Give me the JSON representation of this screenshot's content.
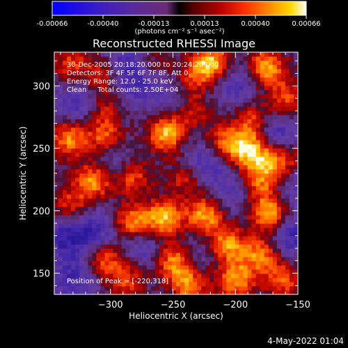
{
  "chart_data": {
    "type": "heatmap",
    "title": "Reconstructed RHESSI Image",
    "xlabel": "Heliocentric X (arcsec)",
    "ylabel": "Heliocentric Y (arcsec)",
    "xlim": [
      -345,
      -150
    ],
    "ylim": [
      133,
      327
    ],
    "x_ticks": [
      -300,
      -250,
      -200,
      -150
    ],
    "y_ticks": [
      150,
      200,
      250,
      300
    ],
    "colorbar": {
      "min": -0.00066,
      "max": 0.00066,
      "ticks": [
        "-0.00066",
        "-0.00040",
        "-0.00013",
        "0.00013",
        "0.00040",
        "0.00066"
      ],
      "unit_label": "(photons cm⁻² s⁻¹ asec⁻²)"
    },
    "annotations": [
      "30-Dec-2005 20:18:20.000 to 20:24:20.000",
      "Detectors: 3F 4F 5F 6F 7F 8F, Att 0",
      "Energy Range: 12.0 - 25.0 keV",
      "Clean     Total counts: 2.50E+04"
    ],
    "peak_label": "Position of Peak = [-220,318]",
    "peak": {
      "x": -220,
      "y": 318
    },
    "bright_regions": [
      {
        "x": -331,
        "y": 317,
        "level": 0.55
      },
      {
        "x": -305,
        "y": 308,
        "level": 0.55
      },
      {
        "x": -268,
        "y": 318,
        "level": 0.45
      },
      {
        "x": -237,
        "y": 306,
        "level": 0.5
      },
      {
        "x": -220,
        "y": 318,
        "level": 1.0
      },
      {
        "x": -175,
        "y": 315,
        "level": 0.9
      },
      {
        "x": -160,
        "y": 290,
        "level": 0.6
      },
      {
        "x": -306,
        "y": 281,
        "level": 0.45
      },
      {
        "x": -233,
        "y": 281,
        "level": 0.45
      },
      {
        "x": -188,
        "y": 272,
        "level": 0.6
      },
      {
        "x": -333,
        "y": 258,
        "level": 0.8
      },
      {
        "x": -304,
        "y": 258,
        "level": 0.7
      },
      {
        "x": -255,
        "y": 262,
        "level": 0.95
      },
      {
        "x": -212,
        "y": 255,
        "level": 0.55
      },
      {
        "x": -193,
        "y": 250,
        "level": 0.9
      },
      {
        "x": -176,
        "y": 240,
        "level": 0.75
      },
      {
        "x": -283,
        "y": 228,
        "level": 0.65
      },
      {
        "x": -314,
        "y": 224,
        "level": 0.9
      },
      {
        "x": -240,
        "y": 226,
        "level": 0.5
      },
      {
        "x": -180,
        "y": 222,
        "level": 0.6
      },
      {
        "x": -332,
        "y": 203,
        "level": 0.6
      },
      {
        "x": -283,
        "y": 191,
        "level": 0.85
      },
      {
        "x": -257,
        "y": 194,
        "level": 0.95
      },
      {
        "x": -224,
        "y": 197,
        "level": 0.9
      },
      {
        "x": -173,
        "y": 198,
        "level": 0.95
      },
      {
        "x": -207,
        "y": 173,
        "level": 0.85
      },
      {
        "x": -305,
        "y": 162,
        "level": 0.7
      },
      {
        "x": -250,
        "y": 160,
        "level": 0.8
      },
      {
        "x": -180,
        "y": 165,
        "level": 0.75
      },
      {
        "x": -287,
        "y": 146,
        "level": 0.6
      },
      {
        "x": -237,
        "y": 141,
        "level": 0.8
      },
      {
        "x": -200,
        "y": 145,
        "level": 0.85
      },
      {
        "x": -162,
        "y": 145,
        "level": 0.65
      },
      {
        "x": -158,
        "y": 240,
        "level": 0.55
      }
    ],
    "dark_regions": [
      {
        "x": -285,
        "y": 318,
        "level": 0.8
      },
      {
        "x": -200,
        "y": 300,
        "level": 0.6
      },
      {
        "x": -325,
        "y": 286,
        "level": 0.7
      },
      {
        "x": -280,
        "y": 300,
        "level": 0.5
      },
      {
        "x": -250,
        "y": 295,
        "level": 0.5
      },
      {
        "x": -298,
        "y": 240,
        "level": 0.6
      },
      {
        "x": -225,
        "y": 240,
        "level": 0.7
      },
      {
        "x": -165,
        "y": 262,
        "level": 0.7
      },
      {
        "x": -205,
        "y": 215,
        "level": 0.5
      },
      {
        "x": -335,
        "y": 180,
        "level": 0.9
      },
      {
        "x": -310,
        "y": 185,
        "level": 0.7
      },
      {
        "x": -155,
        "y": 180,
        "level": 0.8
      },
      {
        "x": -275,
        "y": 170,
        "level": 0.6
      },
      {
        "x": -328,
        "y": 145,
        "level": 0.7
      },
      {
        "x": -228,
        "y": 165,
        "level": 0.4
      },
      {
        "x": -155,
        "y": 222,
        "level": 0.5
      }
    ]
  },
  "footer": {
    "timestamp": "4-May-2022 01:04"
  }
}
